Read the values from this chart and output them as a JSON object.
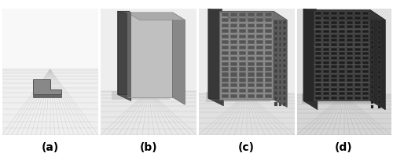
{
  "figure_width": 5.0,
  "figure_height": 2.01,
  "dpi": 100,
  "background_color": "#ffffff",
  "num_panels": 4,
  "labels": [
    "(a)",
    "(b)",
    "(c)",
    "(d)"
  ],
  "label_fontsize": 10,
  "label_fontweight": "bold",
  "panel_bg": [
    "#f0f0f0",
    "#e8e8e8",
    "#e0e0e0",
    "#d8d8d8"
  ],
  "border_color": "#cccccc",
  "border_linewidth": 0.5
}
